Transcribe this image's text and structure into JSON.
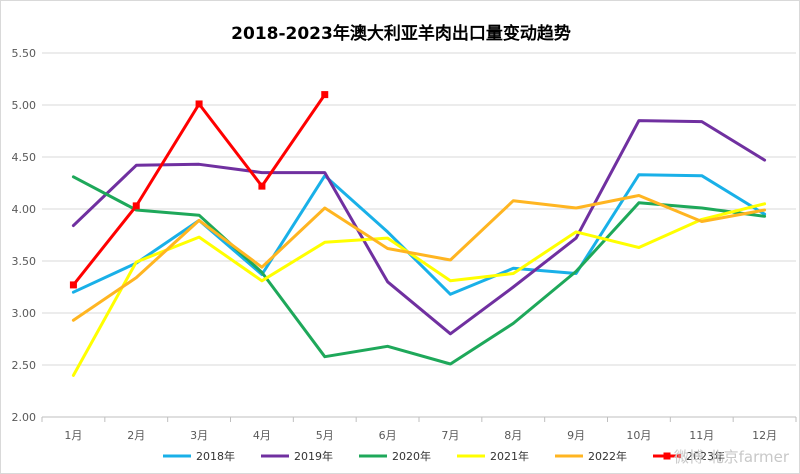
{
  "chart_data": {
    "type": "line",
    "title": "2018-2023年澳大利亚羊肉出口量变动趋势",
    "xlabel": "",
    "ylabel": "",
    "categories": [
      "1月",
      "2月",
      "3月",
      "4月",
      "5月",
      "6月",
      "7月",
      "8月",
      "9月",
      "10月",
      "11月",
      "12月"
    ],
    "yticks": [
      "2.00",
      "2.50",
      "3.00",
      "3.50",
      "4.00",
      "4.50",
      "5.00",
      "5.50"
    ],
    "ylim": [
      2.0,
      5.5
    ],
    "grid": "horizontal",
    "legend_position": "bottom",
    "series": [
      {
        "name": "2018年",
        "color": "#19b0e8",
        "marker": "none",
        "values": [
          3.2,
          3.48,
          3.89,
          3.37,
          4.32,
          3.78,
          3.18,
          3.43,
          3.38,
          4.33,
          4.32,
          3.95
        ]
      },
      {
        "name": "2019年",
        "color": "#7030a0",
        "marker": "none",
        "values": [
          3.84,
          4.42,
          4.43,
          4.35,
          4.35,
          3.3,
          2.8,
          3.25,
          3.72,
          4.85,
          4.84,
          4.47
        ]
      },
      {
        "name": "2020年",
        "color": "#1ea85a",
        "marker": "none",
        "values": [
          4.31,
          3.99,
          3.94,
          3.39,
          2.58,
          2.68,
          2.51,
          2.9,
          3.4,
          4.06,
          4.01,
          3.93
        ]
      },
      {
        "name": "2021年",
        "color": "#ffff00",
        "marker": "none",
        "values": [
          2.4,
          3.49,
          3.73,
          3.31,
          3.68,
          3.72,
          3.31,
          3.38,
          3.78,
          3.63,
          3.9,
          4.05
        ]
      },
      {
        "name": "2022年",
        "color": "#ffb521",
        "marker": "none",
        "values": [
          2.93,
          3.34,
          3.89,
          3.44,
          4.01,
          3.62,
          3.51,
          4.08,
          4.01,
          4.13,
          3.88,
          3.99
        ]
      },
      {
        "name": "2023年",
        "color": "#ff0000",
        "marker": "square",
        "values": [
          3.27,
          4.03,
          5.01,
          4.22,
          5.1,
          null,
          null,
          null,
          null,
          null,
          null,
          null
        ]
      }
    ]
  },
  "watermark": "微博 北京farmer",
  "icons": {
    "watermark_icon": "weibo-icon"
  }
}
